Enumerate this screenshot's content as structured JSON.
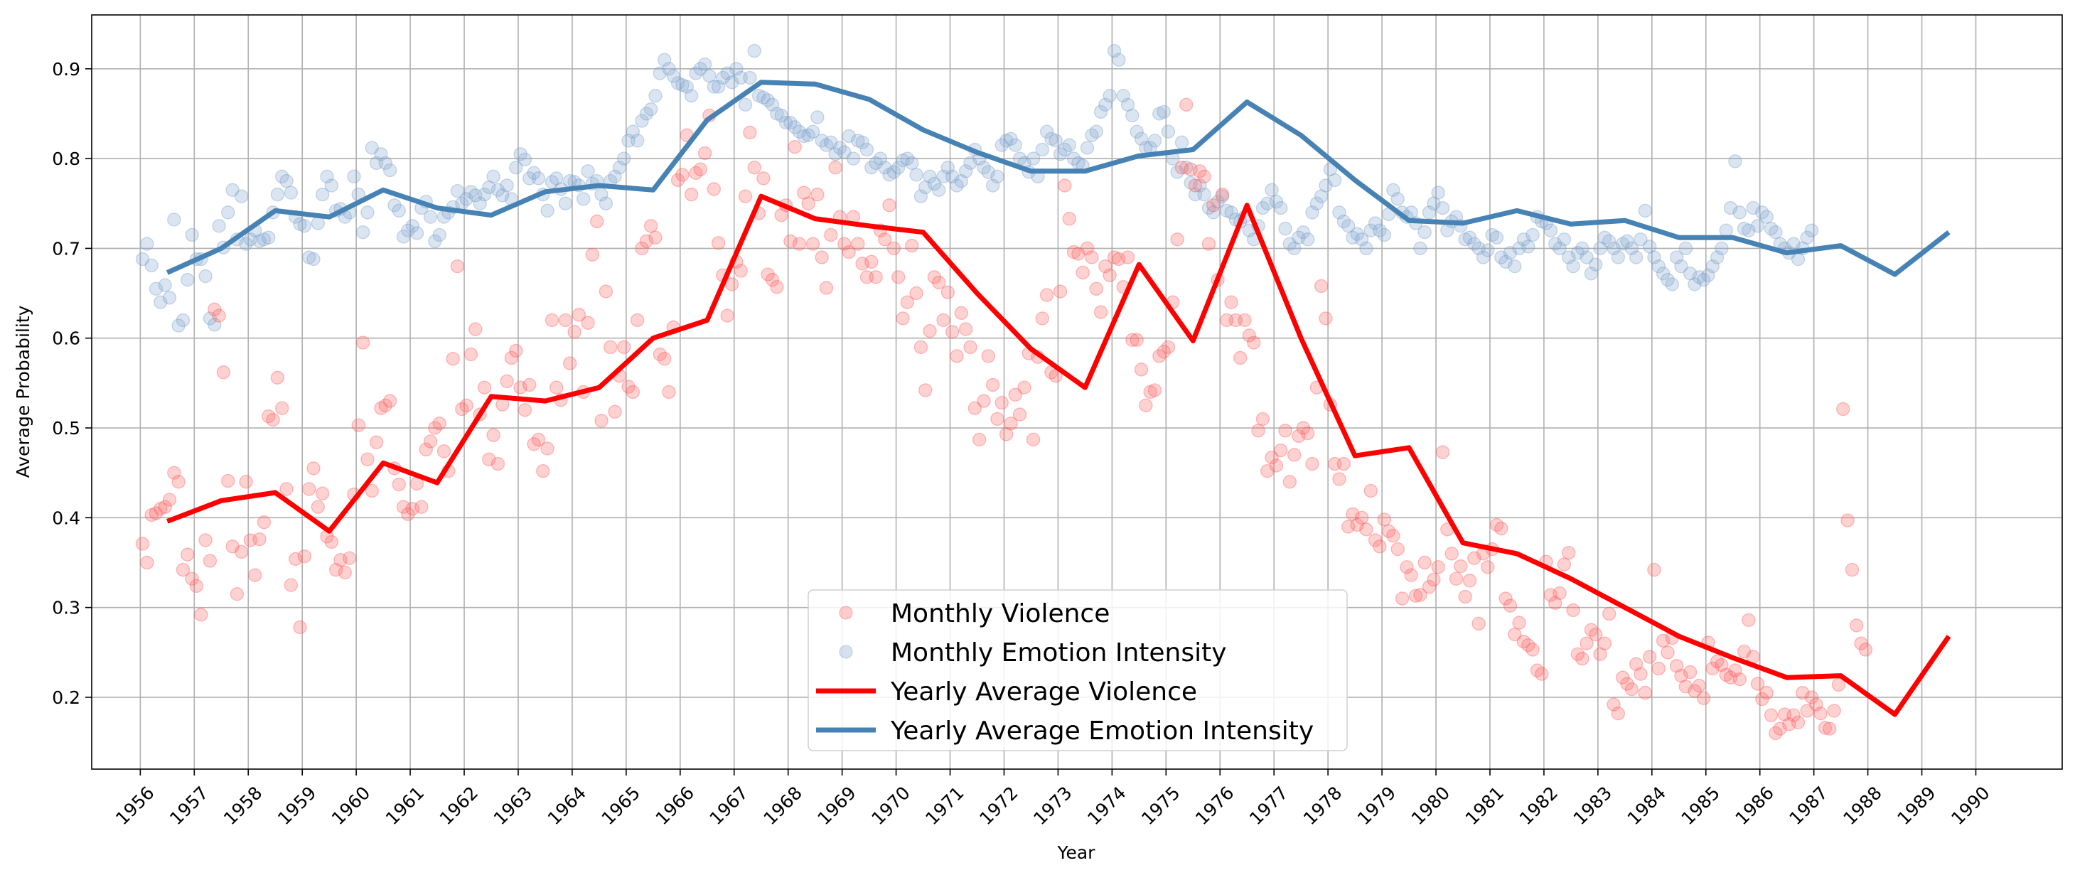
{
  "chart_data": {
    "type": "line",
    "title": "",
    "xlabel": "Year",
    "ylabel": "Average Probability",
    "xlim": [
      1955.1,
      1991.6
    ],
    "ylim": [
      0.12,
      0.96
    ],
    "grid": true,
    "legend_position": "lower-center",
    "x_ticks": [
      "1956",
      "1957",
      "1958",
      "1959",
      "1960",
      "1961",
      "1962",
      "1963",
      "1964",
      "1965",
      "1966",
      "1967",
      "1968",
      "1969",
      "1970",
      "1971",
      "1972",
      "1973",
      "1974",
      "1975",
      "1976",
      "1977",
      "1978",
      "1979",
      "1980",
      "1981",
      "1982",
      "1983",
      "1984",
      "1985",
      "1986",
      "1987",
      "1988",
      "1989",
      "1990"
    ],
    "y_ticks": [
      "0.2",
      "0.3",
      "0.4",
      "0.5",
      "0.6",
      "0.7",
      "0.8",
      "0.9"
    ],
    "legend": [
      "Monthly Violence",
      "Monthly Emotion Intensity",
      "Yearly Average Violence",
      "Yearly Average Emotion Intensity"
    ],
    "colors": {
      "violence": "#ff0000",
      "emotion": "#4682b4",
      "violence_points": "#ff6b6b",
      "emotion_points": "#87aacf"
    },
    "series": [
      {
        "name": "Yearly Average Violence",
        "kind": "line",
        "x": [
          1956.5,
          1957.5,
          1958.5,
          1959.5,
          1960.5,
          1961.5,
          1962.5,
          1963.5,
          1964.5,
          1965.5,
          1966.5,
          1967.5,
          1968.5,
          1969.5,
          1970.5,
          1971.5,
          1972.5,
          1973.5,
          1974.5,
          1975.5,
          1976.5,
          1977.5,
          1978.5,
          1979.5,
          1980.5,
          1981.5,
          1982.5,
          1983.5,
          1984.5,
          1985.5,
          1986.5,
          1987.5,
          1988.5,
          1989.5
        ],
        "y": [
          0.396,
          0.419,
          0.428,
          0.385,
          0.461,
          0.439,
          0.535,
          0.53,
          0.545,
          0.6,
          0.62,
          0.758,
          0.733,
          0.725,
          0.718,
          0.65,
          0.588,
          0.545,
          0.682,
          0.597,
          0.748,
          0.6,
          0.469,
          0.478,
          0.372,
          0.36,
          0.332,
          0.3,
          0.268,
          0.244,
          0.222,
          0.224,
          0.181,
          0.268
        ]
      },
      {
        "name": "Yearly Average Emotion Intensity",
        "kind": "line",
        "x": [
          1956.5,
          1957.5,
          1958.5,
          1959.5,
          1960.5,
          1961.5,
          1962.5,
          1963.5,
          1964.5,
          1965.5,
          1966.5,
          1967.5,
          1968.5,
          1969.5,
          1970.5,
          1971.5,
          1972.5,
          1973.5,
          1974.5,
          1975.5,
          1976.5,
          1977.5,
          1978.5,
          1979.5,
          1980.5,
          1981.5,
          1982.5,
          1983.5,
          1984.5,
          1985.5,
          1986.5,
          1987.5,
          1988.5,
          1989.5
        ],
        "y": [
          0.673,
          0.7,
          0.742,
          0.735,
          0.765,
          0.745,
          0.737,
          0.763,
          0.77,
          0.765,
          0.843,
          0.885,
          0.883,
          0.866,
          0.832,
          0.807,
          0.786,
          0.786,
          0.803,
          0.81,
          0.863,
          0.826,
          0.776,
          0.731,
          0.728,
          0.742,
          0.727,
          0.731,
          0.712,
          0.712,
          0.695,
          0.703,
          0.671,
          0.718
        ]
      },
      {
        "name": "Monthly Violence",
        "kind": "scatter",
        "y": [
          0.371,
          0.35,
          0.403,
          0.405,
          0.41,
          0.412,
          0.42,
          0.45,
          0.44,
          0.342,
          0.359,
          0.332,
          0.324,
          0.292,
          0.375,
          0.352,
          0.632,
          0.625,
          0.562,
          0.441,
          0.368,
          0.315,
          0.362,
          0.44,
          0.375,
          0.336,
          0.376,
          0.395,
          0.513,
          0.509,
          0.556,
          0.522,
          0.432,
          0.325,
          0.354,
          0.278,
          0.357,
          0.432,
          0.455,
          0.412,
          0.427,
          0.379,
          0.373,
          0.342,
          0.353,
          0.339,
          0.355,
          0.426,
          0.503,
          0.595,
          0.465,
          0.43,
          0.484,
          0.522,
          0.525,
          0.53,
          0.455,
          0.437,
          0.412,
          0.404,
          0.41,
          0.438,
          0.412,
          0.476,
          0.485,
          0.5,
          0.505,
          0.474,
          0.452,
          0.577,
          0.68,
          0.521,
          0.525,
          0.582,
          0.61,
          0.515,
          0.545,
          0.465,
          0.492,
          0.46,
          0.526,
          0.552,
          0.578,
          0.586,
          0.545,
          0.52,
          0.548,
          0.482,
          0.487,
          0.452,
          0.477,
          0.62,
          0.545,
          0.531,
          0.62,
          0.572,
          0.607,
          0.626,
          0.54,
          0.617,
          0.693,
          0.73,
          0.508,
          0.652,
          0.59,
          0.518,
          0.558,
          0.59,
          0.546,
          0.54,
          0.62,
          0.7,
          0.708,
          0.725,
          0.712,
          0.582,
          0.577,
          0.54,
          0.612,
          0.776,
          0.782,
          0.826,
          0.76,
          0.784,
          0.788,
          0.806,
          0.848,
          0.766,
          0.706,
          0.67,
          0.625,
          0.66,
          0.685,
          0.675,
          0.758,
          0.829,
          0.79,
          0.739,
          0.778,
          0.671,
          0.665,
          0.657,
          0.737,
          0.748,
          0.708,
          0.813,
          0.705,
          0.762,
          0.75,
          0.705,
          0.76,
          0.69,
          0.656,
          0.715,
          0.79,
          0.735,
          0.705,
          0.696,
          0.735,
          0.705,
          0.683,
          0.668,
          0.685,
          0.668,
          0.72,
          0.71,
          0.748,
          0.7,
          0.668,
          0.622,
          0.64,
          0.703,
          0.65,
          0.59,
          0.542,
          0.608,
          0.668,
          0.662,
          0.62,
          0.651,
          0.607,
          0.58,
          0.628,
          0.61,
          0.59,
          0.522,
          0.487,
          0.53,
          0.58,
          0.548,
          0.51,
          0.528,
          0.493,
          0.505,
          0.537,
          0.515,
          0.545,
          0.583,
          0.487,
          0.579,
          0.622,
          0.648,
          0.562,
          0.558,
          0.652,
          0.77,
          0.733,
          0.696,
          0.694,
          0.673,
          0.7,
          0.69,
          0.655,
          0.629,
          0.68,
          0.67,
          0.69,
          0.688,
          0.657,
          0.69,
          0.598,
          0.598,
          0.565,
          0.525,
          0.54,
          0.542,
          0.58,
          0.585,
          0.59,
          0.64,
          0.71,
          0.79,
          0.86,
          0.788,
          0.77,
          0.786,
          0.78,
          0.705,
          0.748,
          0.665,
          0.76,
          0.62,
          0.64,
          0.62,
          0.578,
          0.62,
          0.603,
          0.595,
          0.497,
          0.51,
          0.452,
          0.467,
          0.458,
          0.475,
          0.497,
          0.44,
          0.47,
          0.491,
          0.5,
          0.494,
          0.46,
          0.545,
          0.658,
          0.622,
          0.526,
          0.46,
          0.443,
          0.46,
          0.39,
          0.404,
          0.392,
          0.4,
          0.387,
          0.43,
          0.375,
          0.368,
          0.398,
          0.385,
          0.38,
          0.365,
          0.31,
          0.345,
          0.336,
          0.313,
          0.314,
          0.35,
          0.323,
          0.331,
          0.345,
          0.473,
          0.387,
          0.36,
          0.332,
          0.346,
          0.312,
          0.33,
          0.355,
          0.282,
          0.36,
          0.345,
          0.365,
          0.392,
          0.388,
          0.31,
          0.302,
          0.27,
          0.283,
          0.262,
          0.258,
          0.253,
          0.23,
          0.226,
          0.351,
          0.314,
          0.305,
          0.316,
          0.348,
          0.361,
          0.297,
          0.248,
          0.243,
          0.26,
          0.275,
          0.27,
          0.248,
          0.26,
          0.293,
          0.192,
          0.182,
          0.222,
          0.215,
          0.209,
          0.237,
          0.226,
          0.205,
          0.245,
          0.342,
          0.232,
          0.263,
          0.25,
          0.266,
          0.235,
          0.224,
          0.212,
          0.228,
          0.207,
          0.213,
          0.199,
          0.261,
          0.232,
          0.24,
          0.236,
          0.225,
          0.222,
          0.23,
          0.22,
          0.251,
          0.286,
          0.245,
          0.215,
          0.198,
          0.205,
          0.18,
          0.16,
          0.165,
          0.181,
          0.17,
          0.18,
          0.172,
          0.205,
          0.185,
          0.2,
          0.192,
          0.182,
          0.166,
          0.165,
          0.185,
          0.214,
          0.521,
          0.397,
          0.342,
          0.28,
          0.26,
          0.253
        ]
      },
      {
        "name": "Monthly Emotion Intensity",
        "kind": "scatter",
        "y": [
          0.688,
          0.705,
          0.681,
          0.655,
          0.64,
          0.659,
          0.645,
          0.732,
          0.614,
          0.62,
          0.665,
          0.715,
          0.688,
          0.688,
          0.669,
          0.622,
          0.615,
          0.725,
          0.701,
          0.74,
          0.765,
          0.71,
          0.758,
          0.705,
          0.71,
          0.72,
          0.708,
          0.71,
          0.712,
          0.74,
          0.76,
          0.78,
          0.775,
          0.762,
          0.735,
          0.727,
          0.725,
          0.69,
          0.688,
          0.728,
          0.76,
          0.78,
          0.77,
          0.742,
          0.744,
          0.735,
          0.74,
          0.78,
          0.76,
          0.718,
          0.74,
          0.812,
          0.795,
          0.805,
          0.795,
          0.787,
          0.748,
          0.742,
          0.713,
          0.72,
          0.725,
          0.717,
          0.745,
          0.752,
          0.735,
          0.708,
          0.715,
          0.735,
          0.74,
          0.746,
          0.764,
          0.75,
          0.755,
          0.763,
          0.759,
          0.75,
          0.76,
          0.768,
          0.78,
          0.765,
          0.759,
          0.77,
          0.755,
          0.79,
          0.805,
          0.799,
          0.778,
          0.784,
          0.778,
          0.76,
          0.742,
          0.774,
          0.778,
          0.766,
          0.75,
          0.775,
          0.774,
          0.77,
          0.755,
          0.786,
          0.772,
          0.775,
          0.76,
          0.75,
          0.775,
          0.78,
          0.79,
          0.8,
          0.82,
          0.83,
          0.82,
          0.842,
          0.85,
          0.855,
          0.87,
          0.895,
          0.91,
          0.9,
          0.892,
          0.884,
          0.882,
          0.88,
          0.87,
          0.895,
          0.9,
          0.905,
          0.892,
          0.88,
          0.88,
          0.89,
          0.895,
          0.885,
          0.9,
          0.89,
          0.86,
          0.89,
          0.92,
          0.87,
          0.868,
          0.865,
          0.86,
          0.85,
          0.848,
          0.84,
          0.84,
          0.835,
          0.83,
          0.825,
          0.826,
          0.83,
          0.846,
          0.82,
          0.815,
          0.818,
          0.805,
          0.812,
          0.807,
          0.825,
          0.8,
          0.82,
          0.818,
          0.81,
          0.79,
          0.795,
          0.8,
          0.79,
          0.782,
          0.785,
          0.79,
          0.798,
          0.8,
          0.795,
          0.782,
          0.758,
          0.768,
          0.78,
          0.772,
          0.765,
          0.78,
          0.79,
          0.78,
          0.77,
          0.775,
          0.786,
          0.795,
          0.81,
          0.8,
          0.79,
          0.785,
          0.77,
          0.78,
          0.815,
          0.82,
          0.822,
          0.815,
          0.8,
          0.795,
          0.785,
          0.8,
          0.78,
          0.81,
          0.83,
          0.822,
          0.82,
          0.805,
          0.81,
          0.815,
          0.8,
          0.795,
          0.792,
          0.812,
          0.826,
          0.83,
          0.852,
          0.86,
          0.87,
          0.92,
          0.91,
          0.87,
          0.86,
          0.848,
          0.83,
          0.822,
          0.812,
          0.812,
          0.82,
          0.85,
          0.852,
          0.83,
          0.8,
          0.785,
          0.818,
          0.79,
          0.773,
          0.76,
          0.77,
          0.76,
          0.745,
          0.74,
          0.752,
          0.758,
          0.742,
          0.74,
          0.732,
          0.73,
          0.735,
          0.72,
          0.71,
          0.725,
          0.745,
          0.75,
          0.765,
          0.752,
          0.745,
          0.722,
          0.705,
          0.7,
          0.712,
          0.718,
          0.71,
          0.74,
          0.75,
          0.758,
          0.77,
          0.788,
          0.776,
          0.74,
          0.73,
          0.725,
          0.712,
          0.716,
          0.71,
          0.7,
          0.72,
          0.728,
          0.72,
          0.715,
          0.738,
          0.765,
          0.755,
          0.74,
          0.735,
          0.74,
          0.728,
          0.7,
          0.718,
          0.74,
          0.75,
          0.762,
          0.745,
          0.72,
          0.73,
          0.735,
          0.725,
          0.71,
          0.712,
          0.705,
          0.7,
          0.69,
          0.698,
          0.715,
          0.712,
          0.69,
          0.685,
          0.695,
          0.68,
          0.7,
          0.71,
          0.702,
          0.715,
          0.735,
          0.73,
          0.728,
          0.72,
          0.705,
          0.7,
          0.71,
          0.69,
          0.68,
          0.695,
          0.7,
          0.69,
          0.672,
          0.682,
          0.7,
          0.712,
          0.708,
          0.7,
          0.69,
          0.705,
          0.708,
          0.7,
          0.69,
          0.71,
          0.742,
          0.702,
          0.69,
          0.68,
          0.672,
          0.665,
          0.66,
          0.69,
          0.68,
          0.7,
          0.672,
          0.66,
          0.668,
          0.665,
          0.67,
          0.68,
          0.69,
          0.7,
          0.72,
          0.745,
          0.797,
          0.74,
          0.722,
          0.72,
          0.745,
          0.725,
          0.74,
          0.735,
          0.722,
          0.718,
          0.705,
          0.7,
          0.695,
          0.705,
          0.688,
          0.7,
          0.712,
          0.72
        ]
      }
    ]
  }
}
